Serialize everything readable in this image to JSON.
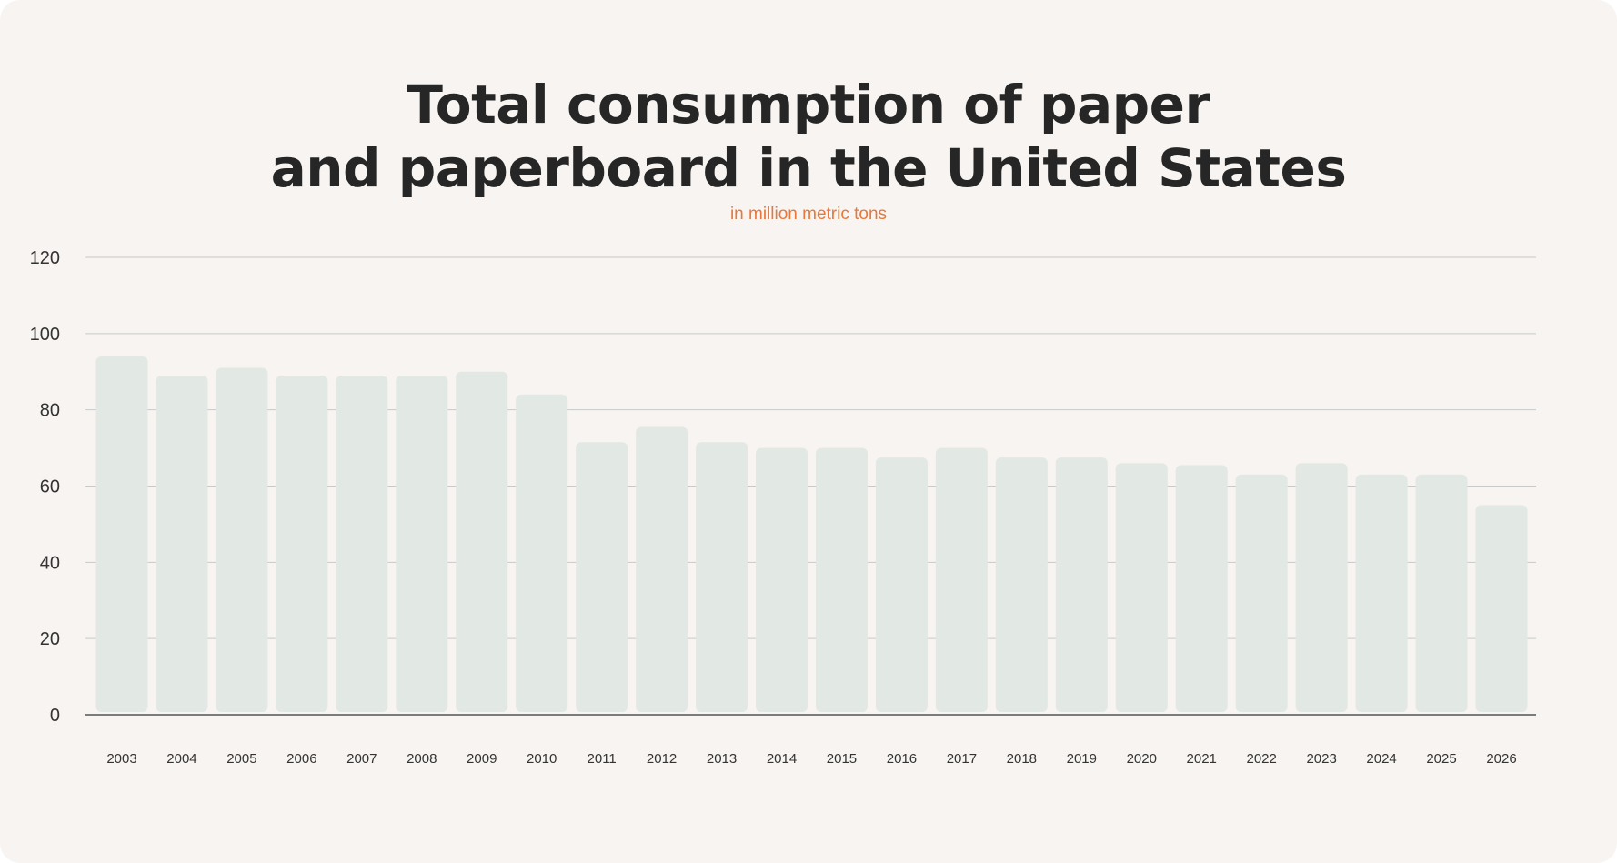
{
  "title_line_1": "Total consumption of paper",
  "title_line_2": "and paperboard in the United States",
  "subtitle": "in million metric tons",
  "colors": {
    "background": "#f7f4f1",
    "title": "#262626",
    "subtitle": "#e8773a",
    "bar": "#e2e8e4",
    "grid": "#c9c9c9",
    "axis": "#555555"
  },
  "chart_data": {
    "type": "bar",
    "title": "Total consumption of paper and paperboard in the United States",
    "subtitle": "in million metric tons",
    "xlabel": "",
    "ylabel": "",
    "ylim": [
      0,
      120
    ],
    "yticks": [
      0,
      20,
      40,
      60,
      80,
      100,
      120
    ],
    "grid": true,
    "categories": [
      "2003",
      "2004",
      "2005",
      "2006",
      "2007",
      "2008",
      "2009",
      "2010",
      "2011",
      "2012",
      "2013",
      "2014",
      "2015",
      "2016",
      "2017",
      "2018",
      "2019",
      "2020",
      "2021",
      "2022",
      "2023",
      "2024",
      "2025",
      "2026"
    ],
    "values": [
      94,
      89,
      91,
      89,
      89,
      89,
      90,
      84,
      71.5,
      75.5,
      71.5,
      70,
      70,
      67.5,
      70,
      67.5,
      67.5,
      66,
      65.5,
      63,
      66,
      63,
      63,
      55
    ]
  }
}
